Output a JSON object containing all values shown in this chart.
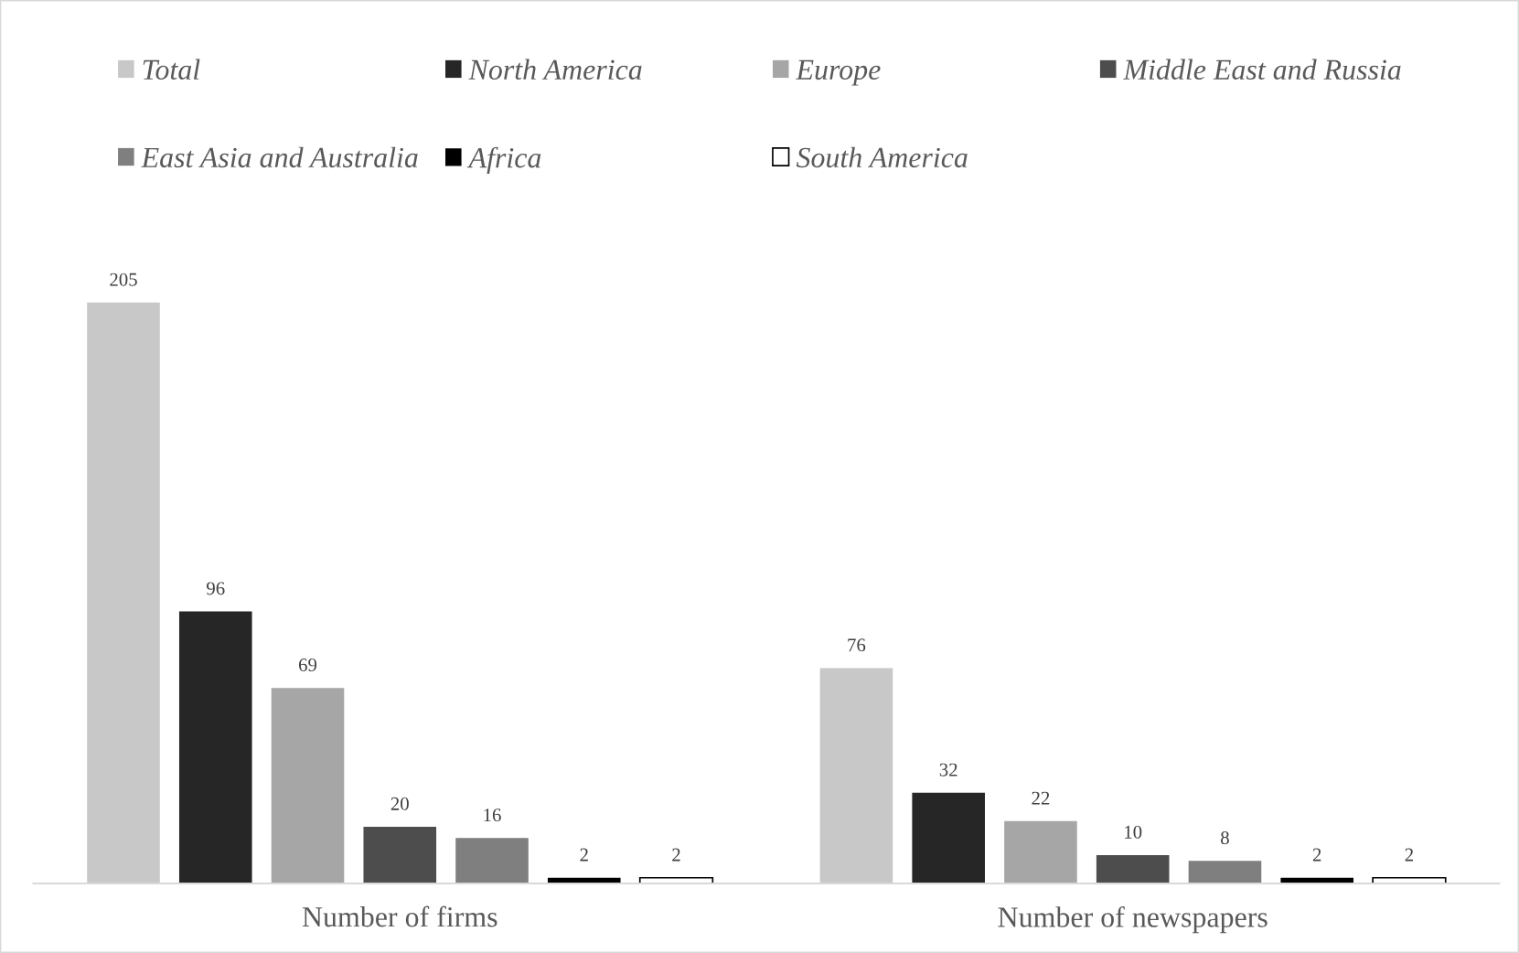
{
  "chart_data": {
    "type": "bar",
    "categories": [
      "Number of firms",
      "Number of newspapers"
    ],
    "series": [
      {
        "name": "Total",
        "color": "#c8c8c8",
        "values": [
          205,
          76
        ]
      },
      {
        "name": "North America",
        "color": "#262626",
        "values": [
          96,
          32
        ]
      },
      {
        "name": "Europe",
        "color": "#a6a6a6",
        "values": [
          69,
          22
        ]
      },
      {
        "name": "Middle East and Russia",
        "color": "#4d4d4d",
        "values": [
          20,
          10
        ]
      },
      {
        "name": "East Asia and Australia",
        "color": "#7f7f7f",
        "values": [
          16,
          8
        ]
      },
      {
        "name": "Africa",
        "color": "#000000",
        "values": [
          2,
          2
        ]
      },
      {
        "name": "South America",
        "color": "#ffffff",
        "values": [
          2,
          2
        ]
      }
    ],
    "data_labels": true,
    "legend": "top",
    "grid": false,
    "tick_labels": "x"
  }
}
